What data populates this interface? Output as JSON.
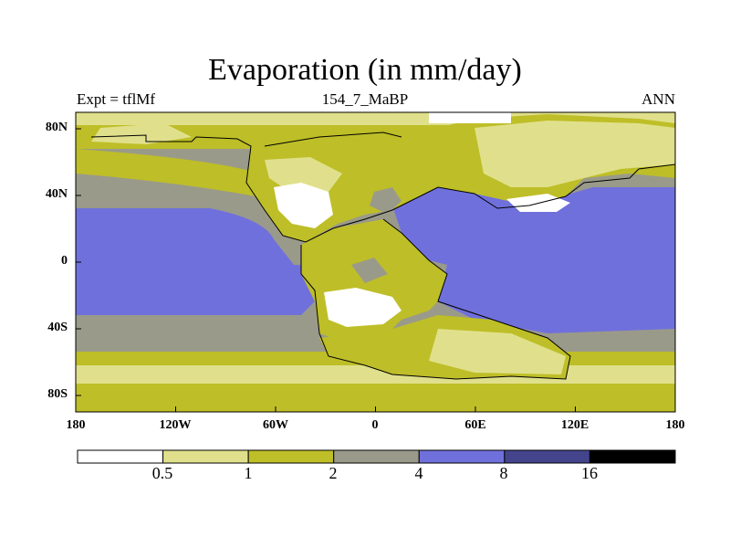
{
  "figure": {
    "title": "Evaporation (in mm/day)",
    "left_label": "Expt = tflMf",
    "center_label": "154_7_MaBP",
    "right_label": "ANN"
  },
  "map": {
    "projection": "cylindrical equidistant",
    "lon_range": [
      -180,
      180
    ],
    "lat_range": [
      -90,
      90
    ],
    "x_tick_labels": [
      "180",
      "120W",
      "60W",
      "0",
      "60E",
      "120E",
      "180"
    ],
    "y_tick_labels": [
      "80N",
      "40N",
      "0",
      "40S",
      "80S"
    ],
    "coastline": "paleogeography (approx. 154 Ma)"
  },
  "colorbar": {
    "colors": [
      "#ffffff",
      "#e0e08c",
      "#bebe28",
      "#9a9a8a",
      "#7070dc",
      "#44448c",
      "#000000"
    ],
    "levels": [
      "0.5",
      "1",
      "2",
      "4",
      "8",
      "16"
    ]
  },
  "chart_data": {
    "type": "heatmap",
    "title": "Evaporation (in mm/day)",
    "variable": "Evaporation",
    "units": "mm/day",
    "experiment": "tflMf",
    "period": "154_7_MaBP",
    "season": "ANN",
    "contour_levels": [
      0.5,
      1,
      2,
      4,
      8,
      16
    ],
    "xlabel": "",
    "ylabel": ""
  }
}
